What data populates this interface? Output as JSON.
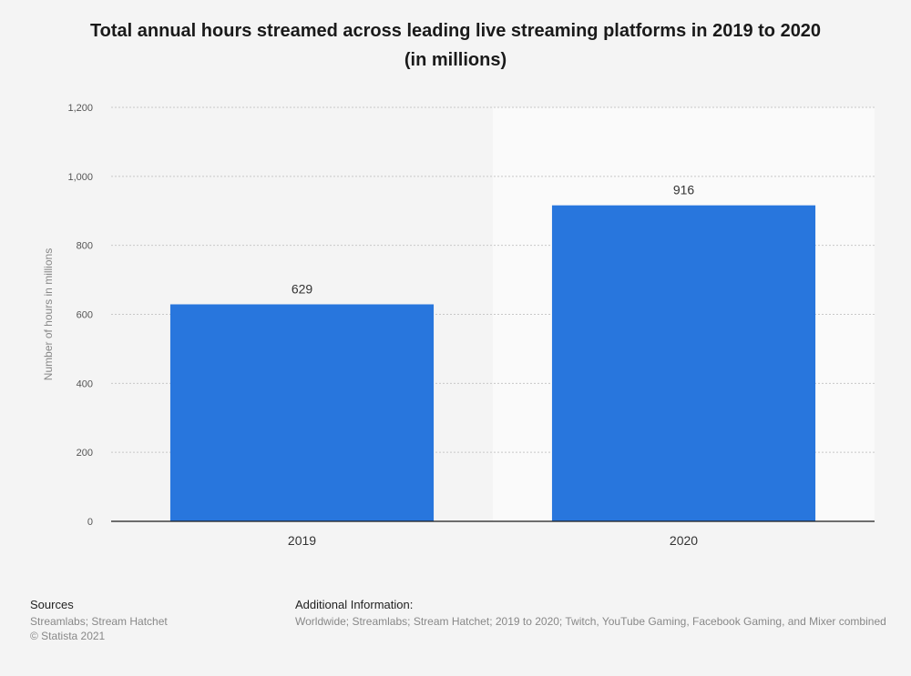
{
  "chart_data": {
    "type": "bar",
    "title": "Total annual hours streamed across leading live streaming platforms in 2019 to 2020 (in millions)",
    "title_line1": "Total annual hours streamed across leading live streaming platforms in 2019 to 2020",
    "title_line2": "(in millions)",
    "categories": [
      "2019",
      "2020"
    ],
    "values": [
      629,
      916
    ],
    "data_labels": [
      "629",
      "916"
    ],
    "xlabel": "",
    "ylabel": "Number of hours in millions",
    "ylim": [
      0,
      1200
    ],
    "yticks": [
      0,
      200,
      400,
      600,
      800,
      1000,
      1200
    ],
    "ytick_labels": [
      "0",
      "200",
      "400",
      "600",
      "800",
      "1,000",
      "1,200"
    ],
    "grid": true,
    "bar_color": "#2876dd",
    "highlight_category": "2020"
  },
  "footer": {
    "sources_title": "Sources",
    "sources_line1": "Streamlabs; Stream Hatchet",
    "sources_line2": "© Statista 2021",
    "additional_title": "Additional Information:",
    "additional_line1": "Worldwide; Streamlabs; Stream Hatchet; 2019 to 2020; Twitch, YouTube Gaming, Facebook Gaming, and Mixer combined"
  }
}
